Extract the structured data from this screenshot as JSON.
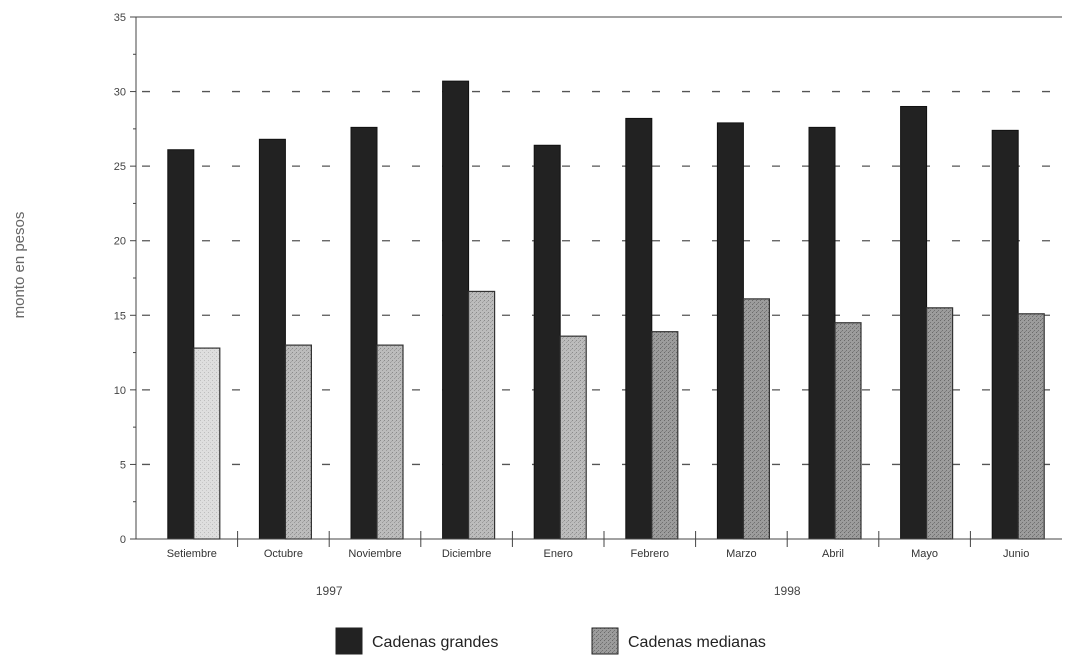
{
  "chart_data": {
    "type": "bar",
    "title": "",
    "xlabel": "",
    "ylabel": "monto en pesos",
    "ylim": [
      0,
      35
    ],
    "yticks": [
      0,
      5,
      10,
      15,
      20,
      25,
      30,
      35
    ],
    "grid": "dashed horizontal",
    "legend_position": "bottom",
    "categories": [
      "Setiembre",
      "Octubre",
      "Noviembre",
      "Diciembre",
      "Enero",
      "Febrero",
      "Marzo",
      "Abril",
      "Mayo",
      "Junio"
    ],
    "year_groups": [
      {
        "label": "1997",
        "categories": [
          "Setiembre",
          "Octubre",
          "Noviembre",
          "Diciembre"
        ]
      },
      {
        "label": "1998",
        "categories": [
          "Enero",
          "Febrero",
          "Marzo",
          "Abril",
          "Mayo",
          "Junio"
        ]
      }
    ],
    "series": [
      {
        "name": "Cadenas grandes",
        "color": "#222222",
        "values": [
          26.1,
          26.8,
          27.6,
          30.7,
          26.4,
          28.2,
          27.9,
          27.6,
          29.0,
          27.4
        ]
      },
      {
        "name": "Cadenas medianas",
        "color": "#9a9a9a",
        "values": [
          12.8,
          13.0,
          13.0,
          16.6,
          13.6,
          13.9,
          16.1,
          14.5,
          15.5,
          15.1
        ]
      }
    ]
  }
}
